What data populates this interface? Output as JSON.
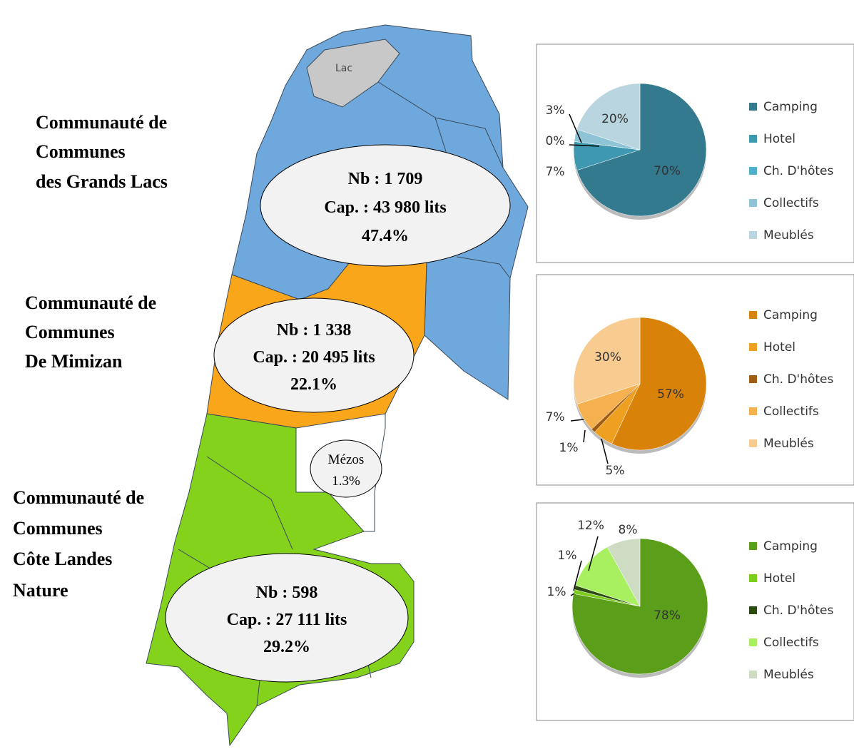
{
  "map": {
    "lake_label": "Lac",
    "regions": [
      {
        "name_lines": [
          "Communauté de",
          "Communes",
          "des Grands Lacs"
        ],
        "info": [
          "Nb : 1 709",
          "Cap. : 43 980 lits",
          "47.4%"
        ]
      },
      {
        "name_lines": [
          "Communauté de",
          "Communes",
          "De Mimizan"
        ],
        "info": [
          "Nb : 1 338",
          "Cap. : 20 495 lits",
          "22.1%"
        ]
      },
      {
        "name_lines": [
          "Communauté de",
          "Communes",
          "Côte Landes",
          "Nature"
        ],
        "info": [
          "Nb : 598",
          "Cap. : 27 111 lits",
          "29.2%"
        ]
      }
    ],
    "mezos": [
      "Mézos",
      "1.3%"
    ]
  },
  "chart_data": [
    {
      "type": "pie",
      "categories": [
        "Camping",
        "Hotel",
        "Ch. D'hôtes",
        "Collectifs",
        "Meublés"
      ],
      "values": [
        70,
        7,
        0,
        3,
        20
      ],
      "value_labels": [
        "70%",
        "7%",
        "0%",
        "3%",
        "20%"
      ],
      "colors": [
        "#337a8e",
        "#3d98b0",
        "#4fb0cb",
        "#8fc4d6",
        "#b8d5e0"
      ]
    },
    {
      "type": "pie",
      "categories": [
        "Camping",
        "Hotel",
        "Ch. D'hôtes",
        "Collectifs",
        "Meublés"
      ],
      "values": [
        57,
        5,
        1,
        7,
        30
      ],
      "value_labels": [
        "57%",
        "5%",
        "1%",
        "7%",
        "30%"
      ],
      "colors": [
        "#d9820a",
        "#f0a020",
        "#a05c10",
        "#f5b050",
        "#f8cc90"
      ]
    },
    {
      "type": "pie",
      "categories": [
        "Camping",
        "Hotel",
        "Ch. D'hôtes",
        "Collectifs",
        "Meublés"
      ],
      "values": [
        78,
        1,
        1,
        12,
        8
      ],
      "value_labels": [
        "78%",
        "1%",
        "1%",
        "12%",
        "8%"
      ],
      "colors": [
        "#5a9e1a",
        "#7ccc1a",
        "#2a4a10",
        "#a8f060",
        "#cfdcc4"
      ]
    }
  ]
}
